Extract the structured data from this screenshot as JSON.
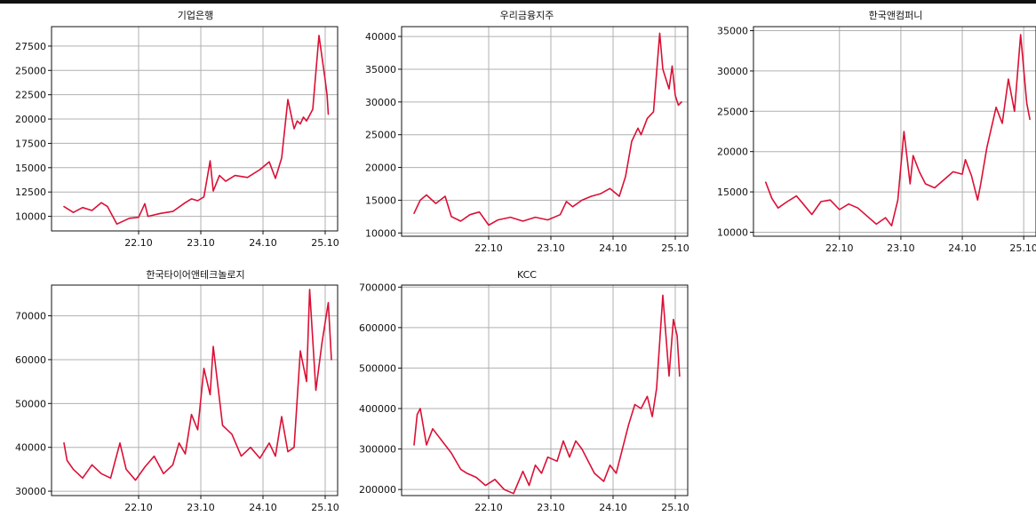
{
  "colors": {
    "line": "#dc0f35",
    "grid": "#b0b0b0",
    "axis": "#111111",
    "background": "#ffffff"
  },
  "chart_data": [
    {
      "type": "line",
      "title": "기업은행",
      "grid": true,
      "xlim": [
        2021.35,
        2025.95
      ],
      "xticks": [
        2022.75,
        2023.75,
        2024.75,
        2025.75
      ],
      "xtick_labels": [
        "22.10",
        "23.10",
        "24.10",
        "25.10"
      ],
      "ylim": [
        8500,
        29500
      ],
      "yticks": [
        10000,
        12500,
        15000,
        17500,
        20000,
        22500,
        25000,
        27500
      ],
      "ytick_labels": [
        "10000",
        "12500",
        "15000",
        "17500",
        "20000",
        "22500",
        "25000",
        "27500"
      ],
      "series": [
        {
          "x": [
            2021.55,
            2021.7,
            2021.85,
            2022.0,
            2022.15,
            2022.25,
            2022.4,
            2022.6,
            2022.75,
            2022.85,
            2022.9,
            2023.1,
            2023.3,
            2023.5,
            2023.6,
            2023.7,
            2023.8,
            2023.9,
            2023.95,
            2024.05,
            2024.15,
            2024.3,
            2024.5,
            2024.7,
            2024.85,
            2024.95,
            2025.05,
            2025.15,
            2025.25,
            2025.3,
            2025.35,
            2025.4,
            2025.45,
            2025.55,
            2025.65,
            2025.75,
            2025.78,
            2025.8
          ],
          "y": [
            11000,
            10400,
            10900,
            10600,
            11400,
            11000,
            9200,
            9800,
            9900,
            11300,
            10000,
            10300,
            10500,
            11400,
            11800,
            11600,
            12000,
            15700,
            12600,
            14200,
            13600,
            14200,
            14000,
            14800,
            15600,
            13900,
            16000,
            22000,
            19000,
            19800,
            19500,
            20200,
            19800,
            21000,
            28600,
            24000,
            22500,
            20500
          ]
        }
      ]
    },
    {
      "type": "line",
      "title": "우리금융지주",
      "grid": true,
      "xlim": [
        2021.35,
        2025.95
      ],
      "xticks": [
        2022.75,
        2023.75,
        2024.75,
        2025.75
      ],
      "xtick_labels": [
        "22.10",
        "23.10",
        "24.10",
        "25.10"
      ],
      "ylim": [
        9500,
        41500
      ],
      "yticks": [
        10000,
        15000,
        20000,
        25000,
        30000,
        35000,
        40000
      ],
      "ytick_labels": [
        "10000",
        "15000",
        "20000",
        "25000",
        "30000",
        "35000",
        "40000"
      ],
      "series": [
        {
          "x": [
            2021.55,
            2021.65,
            2021.75,
            2021.9,
            2022.05,
            2022.15,
            2022.3,
            2022.45,
            2022.6,
            2022.75,
            2022.9,
            2023.1,
            2023.3,
            2023.5,
            2023.7,
            2023.9,
            2024.0,
            2024.1,
            2024.25,
            2024.4,
            2024.55,
            2024.7,
            2024.85,
            2024.95,
            2025.05,
            2025.15,
            2025.2,
            2025.3,
            2025.4,
            2025.5,
            2025.55,
            2025.6,
            2025.65,
            2025.7,
            2025.75,
            2025.8,
            2025.85
          ],
          "y": [
            13000,
            15000,
            15800,
            14500,
            15600,
            12500,
            11800,
            12800,
            13200,
            11200,
            12000,
            12400,
            11800,
            12400,
            12000,
            12800,
            14800,
            14000,
            15000,
            15600,
            16000,
            16800,
            15600,
            18600,
            24000,
            26000,
            25000,
            27500,
            28500,
            40500,
            35000,
            33500,
            32000,
            35500,
            31000,
            29500,
            30000
          ]
        }
      ]
    },
    {
      "type": "line",
      "title": "한국앤컴퍼니",
      "grid": true,
      "xlim": [
        2021.35,
        2025.95
      ],
      "xticks": [
        2022.75,
        2023.75,
        2024.75,
        2025.75
      ],
      "xtick_labels": [
        "22.10",
        "23.10",
        "24.10",
        "25.10"
      ],
      "ylim": [
        9500,
        35500
      ],
      "yticks": [
        10000,
        15000,
        20000,
        25000,
        30000,
        35000
      ],
      "ytick_labels": [
        "10000",
        "15000",
        "20000",
        "25000",
        "30000",
        "35000"
      ],
      "series": [
        {
          "x": [
            2021.55,
            2021.65,
            2021.75,
            2021.9,
            2022.05,
            2022.15,
            2022.3,
            2022.45,
            2022.6,
            2022.75,
            2022.9,
            2023.05,
            2023.2,
            2023.35,
            2023.5,
            2023.6,
            2023.7,
            2023.8,
            2023.9,
            2023.95,
            2024.05,
            2024.15,
            2024.3,
            2024.45,
            2024.6,
            2024.75,
            2024.8,
            2024.9,
            2025.0,
            2025.05,
            2025.15,
            2025.3,
            2025.4,
            2025.5,
            2025.6,
            2025.7,
            2025.8,
            2025.85
          ],
          "y": [
            16200,
            14200,
            13000,
            13800,
            14500,
            13600,
            12200,
            13800,
            14000,
            12800,
            13500,
            13000,
            12000,
            11000,
            11800,
            10800,
            14000,
            22500,
            16000,
            19500,
            17500,
            16000,
            15500,
            16500,
            17500,
            17200,
            19000,
            17000,
            14000,
            16000,
            20500,
            25500,
            23500,
            29000,
            25000,
            34500,
            26000,
            24000
          ]
        }
      ]
    },
    {
      "type": "line",
      "title": "한국타이어앤테크놀로지",
      "grid": true,
      "xlim": [
        2021.35,
        2025.95
      ],
      "xticks": [
        2022.75,
        2023.75,
        2024.75,
        2025.75
      ],
      "xtick_labels": [
        "22.10",
        "23.10",
        "24.10",
        "25.10"
      ],
      "ylim": [
        29000,
        77000
      ],
      "yticks": [
        30000,
        40000,
        50000,
        60000,
        70000
      ],
      "ytick_labels": [
        "30000",
        "40000",
        "50000",
        "60000",
        "70000"
      ],
      "series": [
        {
          "x": [
            2021.55,
            2021.6,
            2021.7,
            2021.85,
            2022.0,
            2022.15,
            2022.3,
            2022.45,
            2022.55,
            2022.7,
            2022.85,
            2023.0,
            2023.15,
            2023.3,
            2023.4,
            2023.5,
            2023.6,
            2023.7,
            2023.8,
            2023.9,
            2023.95,
            2024.1,
            2024.25,
            2024.4,
            2024.55,
            2024.7,
            2024.85,
            2024.95,
            2025.05,
            2025.15,
            2025.25,
            2025.35,
            2025.45,
            2025.5,
            2025.6,
            2025.7,
            2025.8,
            2025.85
          ],
          "y": [
            41000,
            37000,
            35000,
            33000,
            36000,
            34000,
            33000,
            41000,
            35000,
            32500,
            35500,
            38000,
            34000,
            36000,
            41000,
            38500,
            47500,
            44000,
            58000,
            52000,
            63000,
            45000,
            43000,
            38000,
            40000,
            37500,
            41000,
            38000,
            47000,
            39000,
            40000,
            62000,
            55000,
            76000,
            53000,
            64000,
            73000,
            60000
          ]
        }
      ]
    },
    {
      "type": "line",
      "title": "KCC",
      "grid": true,
      "xlim": [
        2021.35,
        2025.95
      ],
      "xticks": [
        2022.75,
        2023.75,
        2024.75,
        2025.75
      ],
      "xtick_labels": [
        "22.10",
        "23.10",
        "24.10",
        "25.10"
      ],
      "ylim": [
        185000,
        705000
      ],
      "yticks": [
        200000,
        300000,
        400000,
        500000,
        600000,
        700000
      ],
      "ytick_labels": [
        "200000",
        "300000",
        "400000",
        "500000",
        "600000",
        "700000"
      ],
      "series": [
        {
          "x": [
            2021.55,
            2021.6,
            2021.65,
            2021.75,
            2021.85,
            2022.0,
            2022.15,
            2022.3,
            2022.4,
            2022.55,
            2022.7,
            2022.85,
            2023.0,
            2023.15,
            2023.3,
            2023.4,
            2023.5,
            2023.6,
            2023.7,
            2023.85,
            2023.95,
            2024.05,
            2024.15,
            2024.25,
            2024.35,
            2024.45,
            2024.6,
            2024.7,
            2024.8,
            2024.9,
            2025.0,
            2025.1,
            2025.2,
            2025.3,
            2025.38,
            2025.45,
            2025.55,
            2025.65,
            2025.72,
            2025.78,
            2025.82
          ],
          "y": [
            310000,
            385000,
            400000,
            310000,
            350000,
            320000,
            290000,
            250000,
            240000,
            230000,
            210000,
            225000,
            200000,
            190000,
            245000,
            210000,
            260000,
            240000,
            280000,
            270000,
            320000,
            280000,
            320000,
            300000,
            270000,
            240000,
            220000,
            260000,
            240000,
            300000,
            360000,
            410000,
            400000,
            430000,
            380000,
            450000,
            680000,
            480000,
            620000,
            580000,
            480000
          ]
        }
      ]
    }
  ]
}
